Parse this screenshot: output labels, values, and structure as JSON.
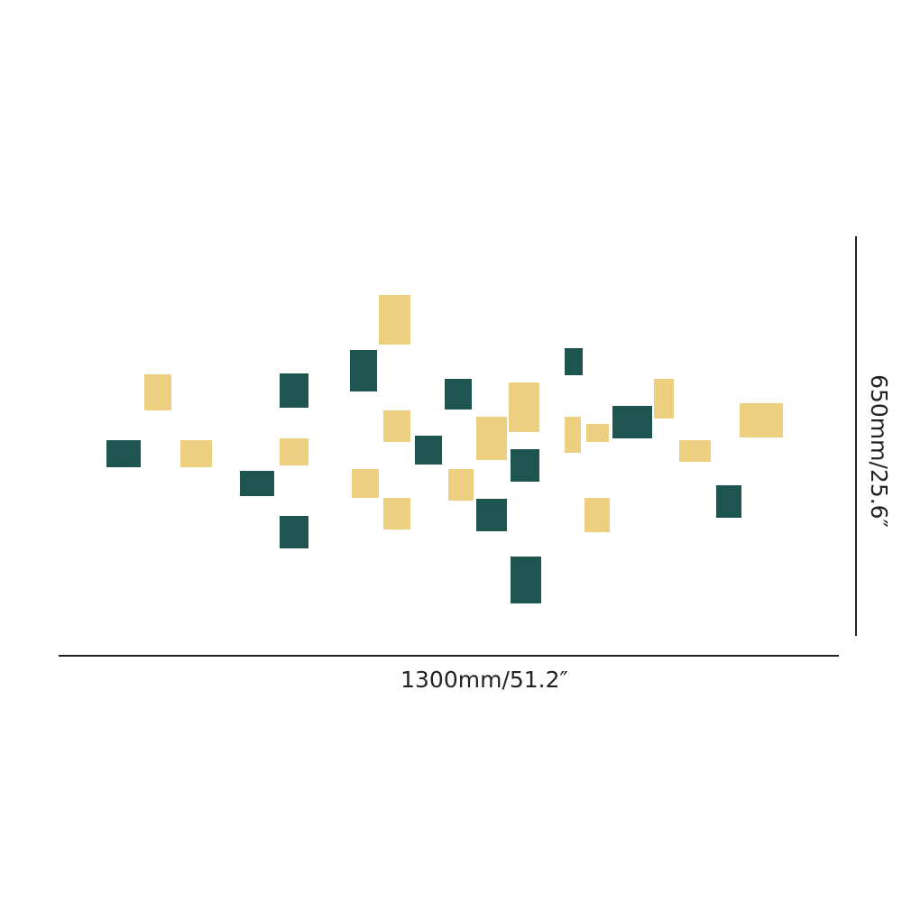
{
  "dimensions": {
    "width": "1300mm/51.2″",
    "height": "650mm/25.6″"
  }
}
